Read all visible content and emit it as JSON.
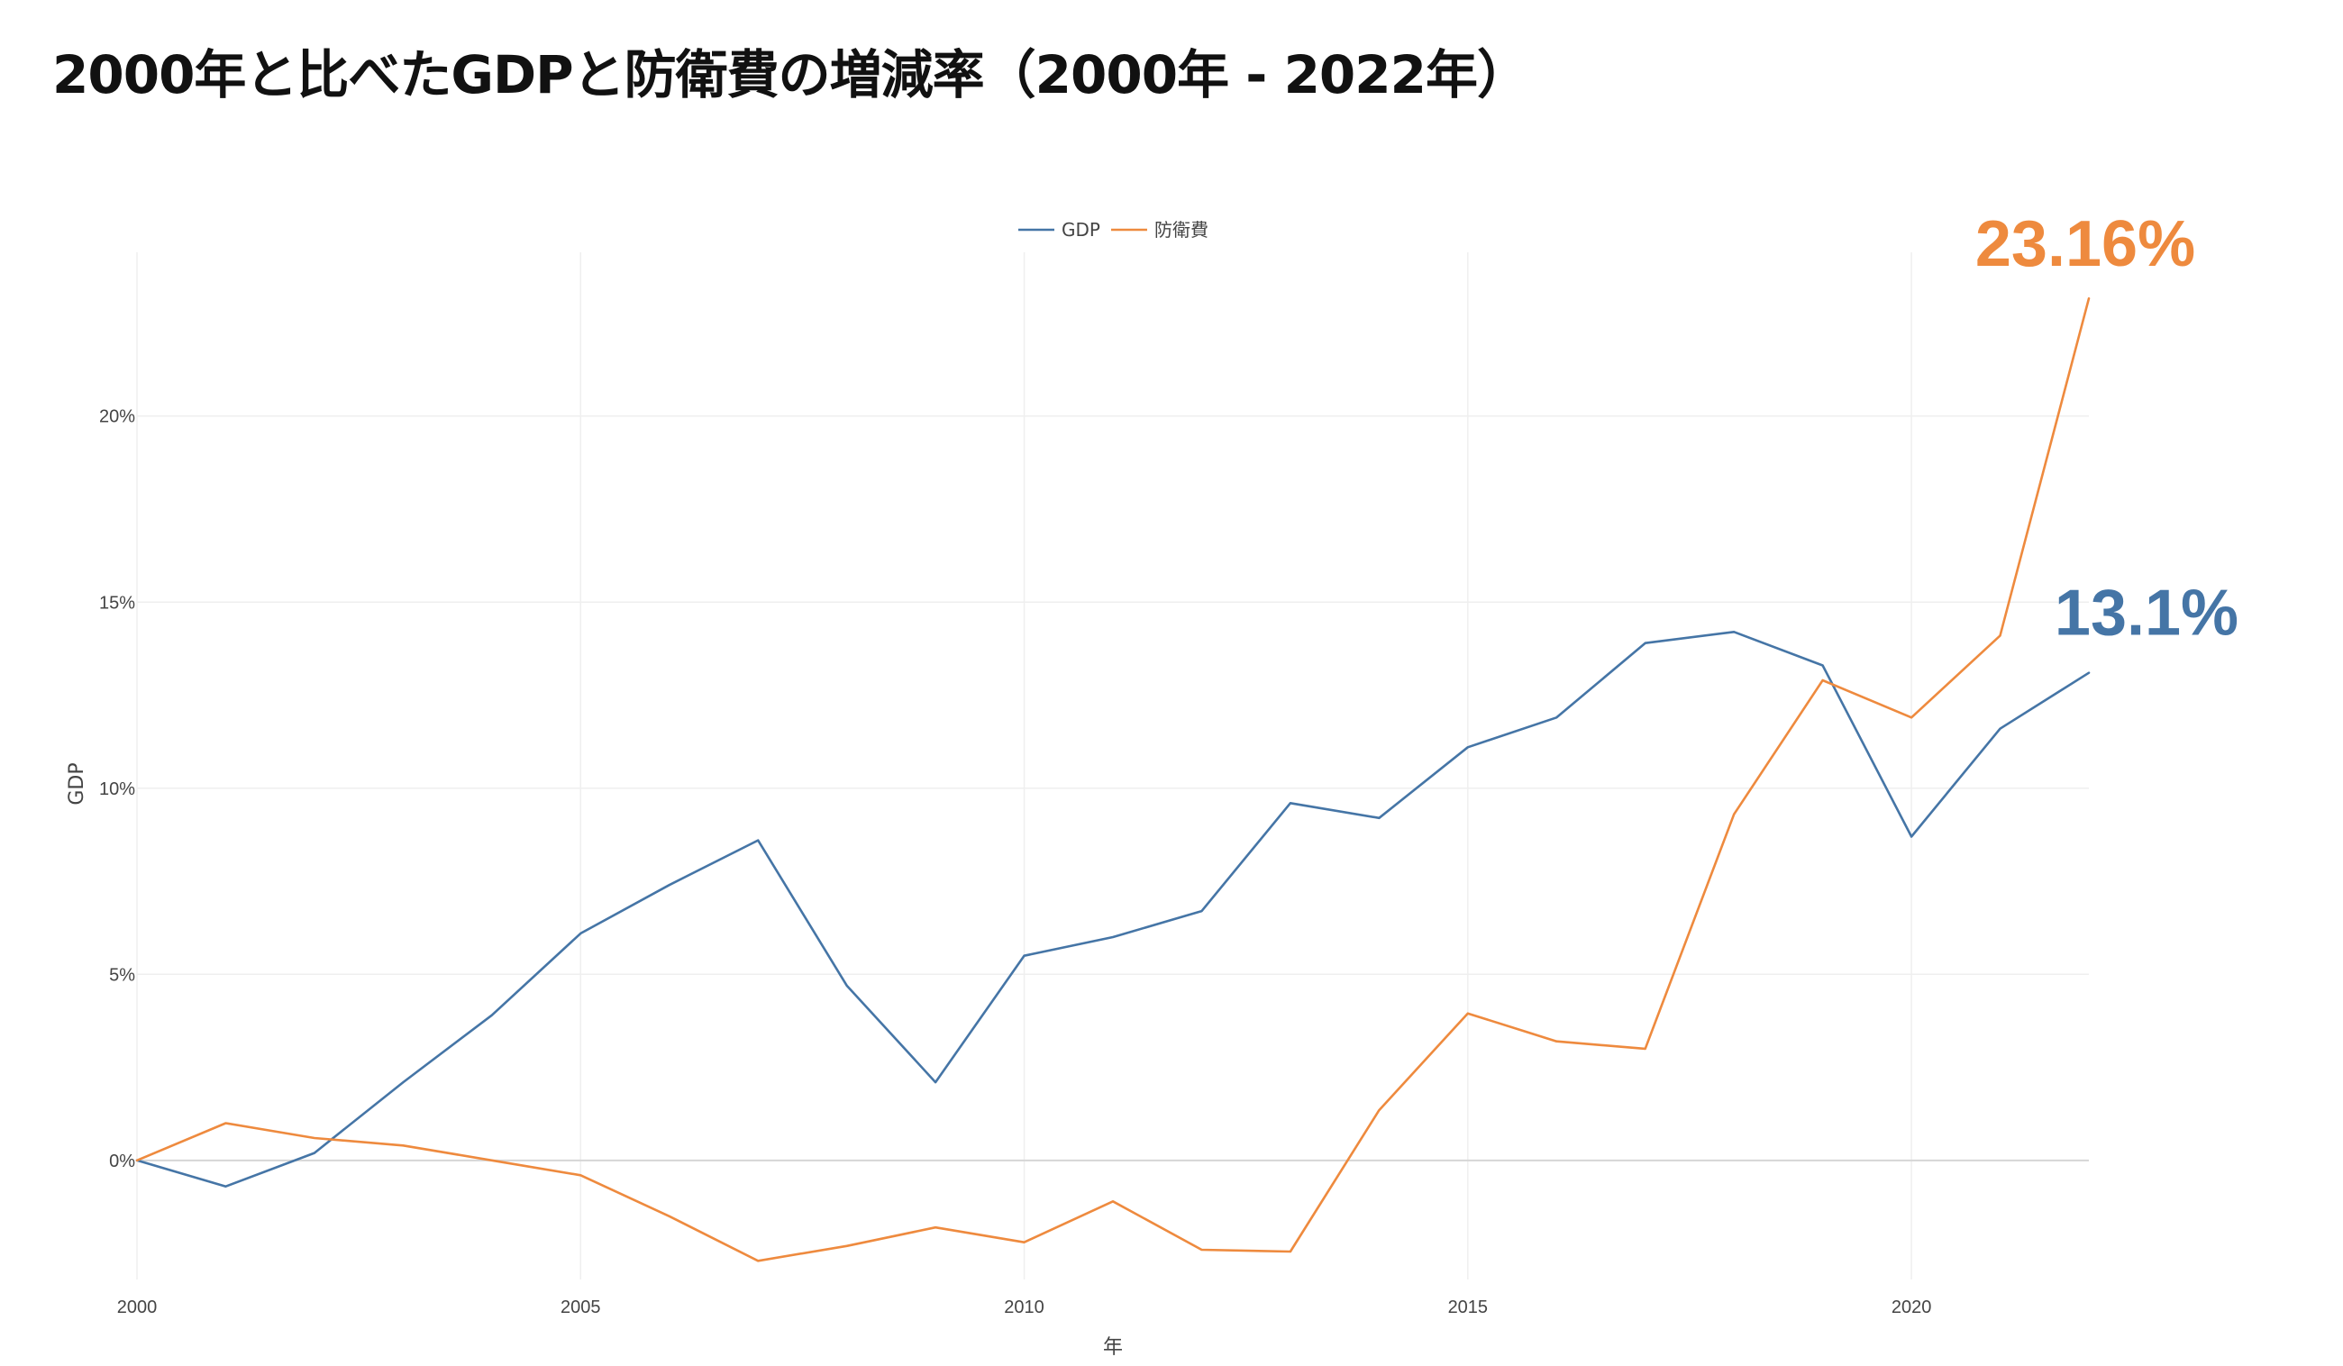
{
  "chart_data": {
    "type": "line",
    "title": "2000年と比べたGDPと防衛費の増減率（2000年 - 2022年）",
    "xlabel": "年",
    "ylabel": "GDP",
    "xlim": [
      2000,
      2022
    ],
    "ylim": [
      -3.2,
      24.4
    ],
    "x_ticks": [
      2000,
      2005,
      2010,
      2015,
      2020
    ],
    "x_tick_labels": [
      "2000",
      "2005",
      "2010",
      "2015",
      "2020"
    ],
    "y_ticks": [
      0,
      5,
      10,
      15,
      20
    ],
    "y_tick_labels": [
      "0%",
      "5%",
      "10%",
      "15%",
      "20%"
    ],
    "grid": true,
    "legend_position": "top-center",
    "x": [
      2000,
      2001,
      2002,
      2003,
      2004,
      2005,
      2006,
      2007,
      2008,
      2009,
      2010,
      2011,
      2012,
      2013,
      2014,
      2015,
      2016,
      2017,
      2018,
      2019,
      2020,
      2021,
      2022
    ],
    "series": [
      {
        "name": "GDP",
        "color": "#4575a6",
        "values": [
          0,
          -0.7,
          0.2,
          2.1,
          3.9,
          6.1,
          7.4,
          8.6,
          4.7,
          2.1,
          5.5,
          6.0,
          6.7,
          9.6,
          9.2,
          11.1,
          11.9,
          13.9,
          14.2,
          13.3,
          8.7,
          11.6,
          13.1
        ]
      },
      {
        "name": "防衛費",
        "color": "#ee8a3e",
        "values": [
          0,
          1.0,
          0.6,
          0.4,
          0.0,
          -0.4,
          -1.5,
          -2.7,
          -2.3,
          -1.8,
          -2.2,
          -1.1,
          -2.4,
          -2.45,
          1.35,
          3.95,
          3.2,
          3.0,
          9.3,
          12.9,
          11.9,
          14.1,
          23.16
        ]
      }
    ],
    "annotations": [
      {
        "series": "防衛費",
        "text": "23.16%",
        "color": "#ee8a3e"
      },
      {
        "series": "GDP",
        "text": "13.1%",
        "color": "#4575a6"
      }
    ]
  }
}
